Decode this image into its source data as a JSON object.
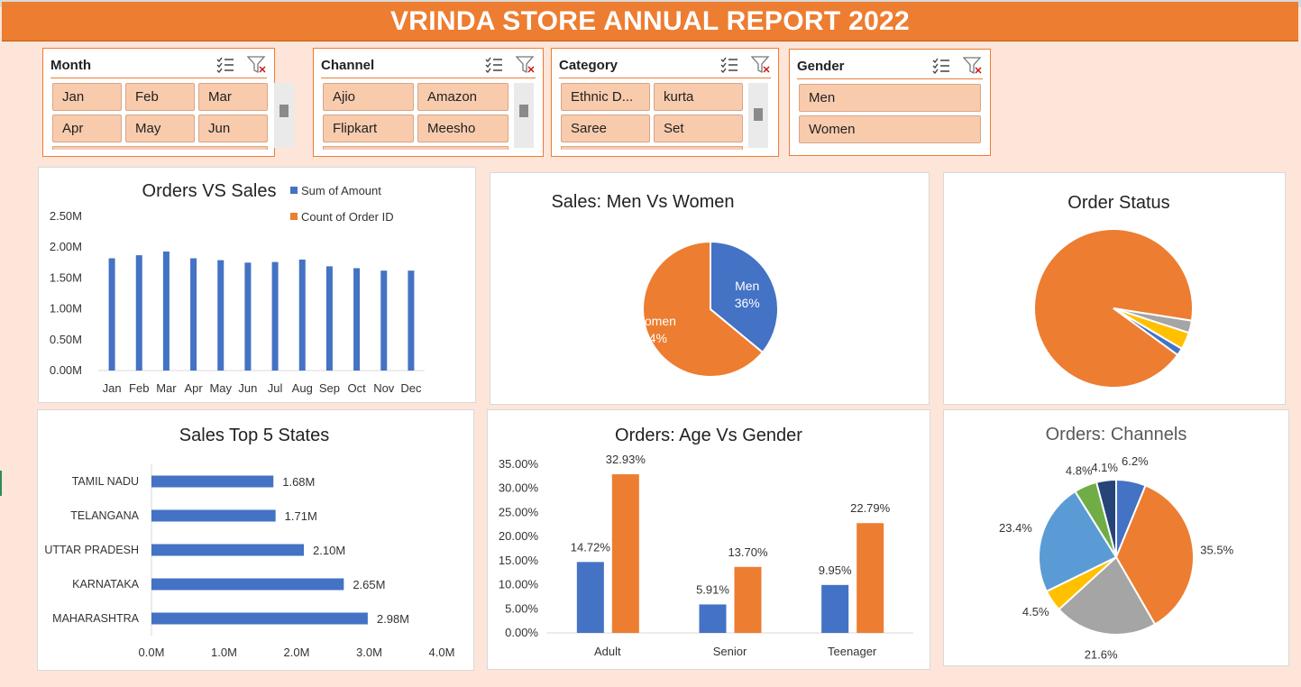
{
  "header": {
    "title": "VRINDA STORE ANNUAL REPORT 2022"
  },
  "colors": {
    "accent": "#ed7d31",
    "blue": "#4472c4",
    "background": "#fde5d9",
    "slicer_button": "#f8cbad"
  },
  "slicers": {
    "month": {
      "title": "Month",
      "items": [
        "Jan",
        "Feb",
        "Mar",
        "Apr",
        "May",
        "Jun"
      ]
    },
    "channel": {
      "title": "Channel",
      "items": [
        "Ajio",
        "Amazon",
        "Flipkart",
        "Meesho"
      ]
    },
    "category": {
      "title": "Category",
      "items": [
        "Ethnic D...",
        "kurta",
        "Saree",
        "Set"
      ]
    },
    "gender": {
      "title": "Gender",
      "items": [
        "Men",
        "Women"
      ]
    },
    "icons": [
      "multi-select-icon",
      "clear-filter-icon"
    ]
  },
  "chart_data": [
    {
      "id": "orders_vs_sales",
      "type": "bar",
      "title": "Orders VS Sales",
      "legend": [
        "Sum of Amount",
        "Count of Order ID"
      ],
      "legend_position": "top-right",
      "categories": [
        "Jan",
        "Feb",
        "Mar",
        "Apr",
        "May",
        "Jun",
        "Jul",
        "Aug",
        "Sep",
        "Oct",
        "Nov",
        "Dec"
      ],
      "series": [
        {
          "name": "Sum of Amount",
          "values": [
            1.82,
            1.87,
            1.93,
            1.82,
            1.79,
            1.75,
            1.76,
            1.8,
            1.69,
            1.66,
            1.62,
            1.62
          ]
        }
      ],
      "yticks": [
        "0.00M",
        "0.50M",
        "1.00M",
        "1.50M",
        "2.00M",
        "2.50M"
      ],
      "ylim": [
        0,
        2.5
      ],
      "grid": false
    },
    {
      "id": "sales_men_vs_women",
      "type": "pie",
      "title": "Sales: Men Vs Women",
      "slices": [
        {
          "label": "Men",
          "percent": "36%",
          "value": 36
        },
        {
          "label": "Women",
          "percent": "64%",
          "value": 64
        }
      ]
    },
    {
      "id": "order_status",
      "type": "pie",
      "title": "Order Status",
      "slices": [
        {
          "value": 92.5
        },
        {
          "value": 2.5
        },
        {
          "value": 3.5
        },
        {
          "value": 1.5
        }
      ]
    },
    {
      "id": "sales_top5_states",
      "type": "bar",
      "orientation": "horizontal",
      "title": "Sales Top 5 States",
      "categories": [
        "TAMIL NADU",
        "TELANGANA",
        "UTTAR PRADESH",
        "KARNATAKA",
        "MAHARASHTRA"
      ],
      "values": [
        1.68,
        1.71,
        2.1,
        2.65,
        2.98
      ],
      "value_labels": [
        "1.68M",
        "1.71M",
        "2.10M",
        "2.65M",
        "2.98M"
      ],
      "xticks": [
        "0.0M",
        "1.0M",
        "2.0M",
        "3.0M",
        "4.0M"
      ],
      "xlim": [
        0,
        4
      ]
    },
    {
      "id": "orders_age_vs_gender",
      "type": "bar",
      "title": "Orders: Age Vs Gender",
      "categories": [
        "Adult",
        "Senior",
        "Teenager"
      ],
      "series": [
        {
          "values": [
            14.72,
            5.91,
            9.95
          ],
          "labels": [
            "14.72%",
            "5.91%",
            "9.95%"
          ]
        },
        {
          "values": [
            32.93,
            13.7,
            22.79
          ],
          "labels": [
            "32.93%",
            "13.70%",
            "22.79%"
          ]
        }
      ],
      "yticks": [
        "0.00%",
        "5.00%",
        "10.00%",
        "15.00%",
        "20.00%",
        "25.00%",
        "30.00%",
        "35.00%"
      ],
      "ylim": [
        0,
        35
      ]
    },
    {
      "id": "orders_channels",
      "type": "pie",
      "title": "Orders: Channels",
      "slices": [
        {
          "label": "6.2%",
          "value": 6.2
        },
        {
          "label": "35.5%",
          "value": 35.5
        },
        {
          "label": "21.6%",
          "value": 21.6
        },
        {
          "label": "4.5%",
          "value": 4.5
        },
        {
          "label": "23.4%",
          "value": 23.4
        },
        {
          "label": "4.8%",
          "value": 4.8
        },
        {
          "label": "4.1%",
          "value": 4.1
        }
      ]
    }
  ]
}
